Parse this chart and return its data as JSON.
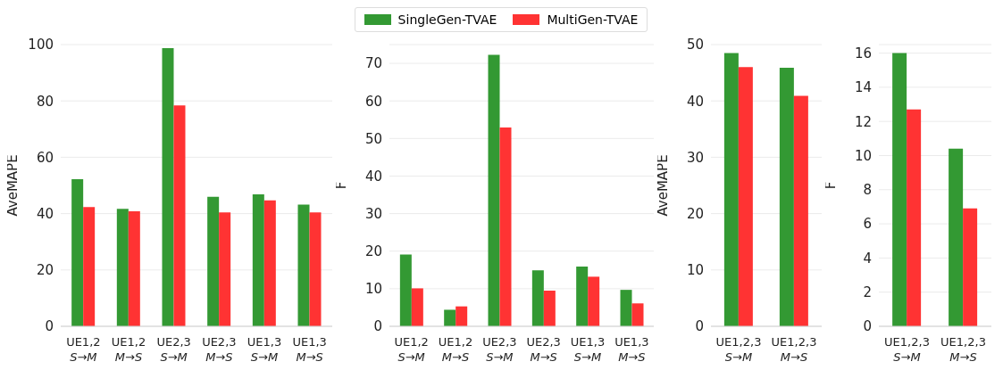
{
  "chart_data": [
    {
      "type": "bar",
      "ylabel": "AveMAPE",
      "categories": [
        "UE1,2\nS→M",
        "UE1,2\nM→S",
        "UE2,3\nS→M",
        "UE2,3\nM→S",
        "UE1,3\nS→M",
        "UE1,3\nM→S"
      ],
      "series": [
        {
          "name": "SingleGen-TVAE",
          "color": "#339933",
          "values": [
            52.2,
            41.7,
            98.7,
            46.0,
            46.8,
            43.2
          ]
        },
        {
          "name": "MultiGen-TVAE",
          "color": "#ff3333",
          "values": [
            42.3,
            40.8,
            78.4,
            40.4,
            44.7,
            40.4
          ]
        }
      ],
      "ylim": [
        0,
        100
      ],
      "yticks": [
        0,
        20,
        40,
        60,
        80,
        100
      ],
      "grid": "y",
      "legend": "top"
    },
    {
      "type": "bar",
      "ylabel": "F",
      "categories": [
        "UE1,2\nS→M",
        "UE1,2\nM→S",
        "UE2,3\nS→M",
        "UE2,3\nM→S",
        "UE1,3\nS→M",
        "UE1,3\nM→S"
      ],
      "series": [
        {
          "color": "#339933",
          "values": [
            19.1,
            4.4,
            72.3,
            14.9,
            15.9,
            9.7
          ]
        },
        {
          "color": "#ff3333",
          "values": [
            10.1,
            5.3,
            52.9,
            9.5,
            13.2,
            6.1
          ]
        }
      ],
      "ylim": [
        0,
        75
      ],
      "yticks": [
        0,
        10,
        20,
        30,
        40,
        50,
        60,
        70
      ],
      "grid": "y"
    },
    {
      "type": "bar",
      "ylabel": "AveMAPE",
      "categories": [
        "UE1,2,3\nS→M",
        "UE1,2,3\nM→S"
      ],
      "series": [
        {
          "color": "#339933",
          "values": [
            48.5,
            45.9
          ]
        },
        {
          "color": "#ff3333",
          "values": [
            46.0,
            40.9
          ]
        }
      ],
      "ylim": [
        0,
        50
      ],
      "yticks": [
        0,
        10,
        20,
        30,
        40,
        50
      ],
      "grid": "y"
    },
    {
      "type": "bar",
      "ylabel": "F",
      "categories": [
        "UE1,2,3\nS→M",
        "UE1,2,3\nM→S"
      ],
      "series": [
        {
          "color": "#339933",
          "values": [
            16.0,
            10.4
          ]
        },
        {
          "color": "#ff3333",
          "values": [
            12.7,
            6.9
          ]
        }
      ],
      "ylim": [
        0,
        16.5
      ],
      "yticks": [
        0,
        2,
        4,
        6,
        8,
        10,
        12,
        14,
        16
      ],
      "grid": "y"
    }
  ]
}
